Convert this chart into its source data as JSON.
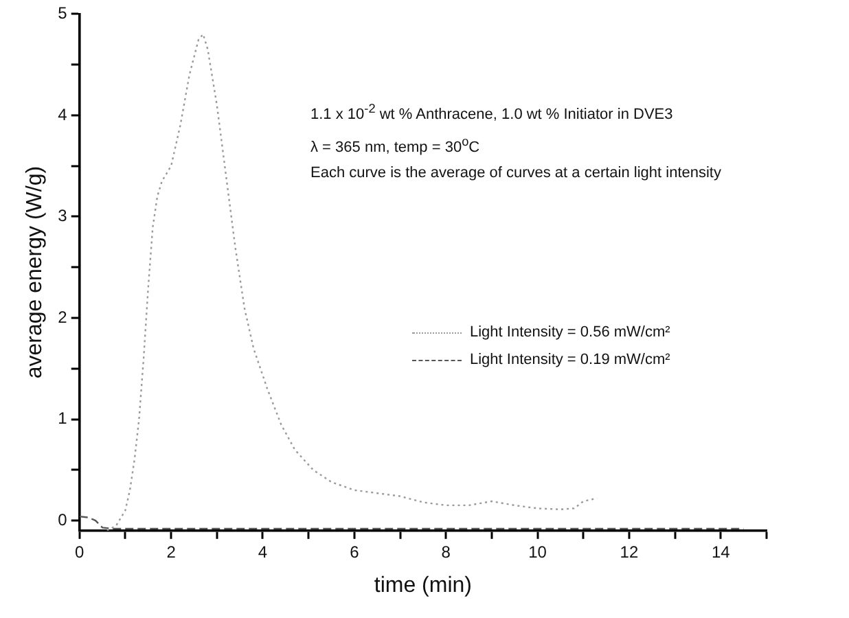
{
  "chart_data": {
    "type": "line",
    "xlabel": "time (min)",
    "ylabel": "average energy (W/g)",
    "annotations": [
      "1.1 x 10$^{-2}$ wt % Anthracene, 1.0 wt % Initiator in DVE3",
      "λ = 365 nm, temp = 30$^{o}$C",
      "Each curve is the average of curves at a certain light intensity"
    ],
    "xlim": [
      0,
      15
    ],
    "xticks": [
      0,
      {
        "value": 1,
        "label": null
      },
      2,
      {
        "value": 3,
        "label": null
      },
      4,
      {
        "value": 5,
        "label": null
      },
      6,
      {
        "value": 7,
        "label": null
      },
      8,
      {
        "value": 9,
        "label": null
      },
      10,
      {
        "value": 11,
        "label": null
      },
      12,
      {
        "value": 13,
        "label": null
      },
      14,
      {
        "value": 15,
        "label": null
      }
    ],
    "ylim": [
      -0.1,
      5
    ],
    "yticks": [
      0,
      {
        "value": 0.5,
        "label": null
      },
      1,
      {
        "value": 1.5,
        "label": null
      },
      2,
      {
        "value": 2.5,
        "label": null
      },
      3,
      {
        "value": 3.5,
        "label": null
      },
      4,
      {
        "value": 4.5,
        "label": null
      },
      5
    ],
    "grid": false,
    "legend": "right",
    "marker": "none",
    "series": [
      {
        "name": "Light Intensity = 0.56 mW/cm²",
        "color": "#9a9a9a",
        "line_style": "dotted",
        "x": [
          0.6,
          0.8,
          1.0,
          1.1,
          1.2,
          1.3,
          1.4,
          1.5,
          1.6,
          1.7,
          1.8,
          2.0,
          2.2,
          2.4,
          2.6,
          2.7,
          2.8,
          3.0,
          3.2,
          3.4,
          3.6,
          3.8,
          4.1,
          4.4,
          4.7,
          5.1,
          5.5,
          6.0,
          6.5,
          7.0,
          7.5,
          8.0,
          8.5,
          9.0,
          9.5,
          10.0,
          10.5,
          10.8,
          11.0,
          11.3
        ],
        "values": [
          -0.1,
          -0.05,
          0.1,
          0.3,
          0.6,
          1.0,
          1.6,
          2.3,
          2.9,
          3.2,
          3.35,
          3.5,
          3.9,
          4.4,
          4.75,
          4.8,
          4.65,
          4.1,
          3.4,
          2.7,
          2.1,
          1.7,
          1.3,
          0.95,
          0.7,
          0.5,
          0.38,
          0.3,
          0.27,
          0.24,
          0.18,
          0.15,
          0.15,
          0.19,
          0.15,
          0.12,
          0.11,
          0.12,
          0.19,
          0.22
        ]
      },
      {
        "name": "Light Intensity = 0.19 mW/cm²",
        "color": "#555555",
        "line_style": "dashed",
        "x": [
          0,
          0.2,
          0.35,
          0.5,
          0.7,
          2,
          4,
          6,
          8,
          10,
          12,
          14.5
        ],
        "values": [
          0.04,
          0.03,
          0.0,
          -0.07,
          -0.08,
          -0.08,
          -0.08,
          -0.08,
          -0.08,
          -0.08,
          -0.08,
          -0.08
        ]
      }
    ]
  }
}
